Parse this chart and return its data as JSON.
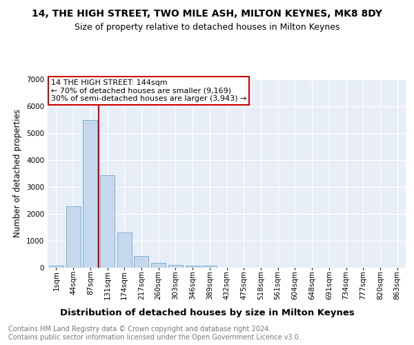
{
  "title1": "14, THE HIGH STREET, TWO MILE ASH, MILTON KEYNES, MK8 8DY",
  "title2": "Size of property relative to detached houses in Milton Keynes",
  "xlabel": "Distribution of detached houses by size in Milton Keynes",
  "ylabel": "Number of detached properties",
  "footer": "Contains HM Land Registry data © Crown copyright and database right 2024.\nContains public sector information licensed under the Open Government Licence v3.0.",
  "bar_labels": [
    "1sqm",
    "44sqm",
    "87sqm",
    "131sqm",
    "174sqm",
    "217sqm",
    "260sqm",
    "303sqm",
    "346sqm",
    "389sqm",
    "432sqm",
    "475sqm",
    "518sqm",
    "561sqm",
    "604sqm",
    "648sqm",
    "691sqm",
    "734sqm",
    "777sqm",
    "820sqm",
    "863sqm"
  ],
  "bar_values": [
    75,
    2280,
    5480,
    3430,
    1310,
    430,
    170,
    85,
    65,
    55,
    0,
    0,
    0,
    0,
    0,
    0,
    0,
    0,
    0,
    0,
    0
  ],
  "bar_color": "#c5d8ee",
  "bar_edge_color": "#7aadd4",
  "vline_color": "#cc0000",
  "annotation_title": "14 THE HIGH STREET: 144sqm",
  "annotation_line1": "← 70% of detached houses are smaller (9,169)",
  "annotation_line2": "30% of semi-detached houses are larger (3,943) →",
  "annotation_box_color": "#cc0000",
  "ylim": [
    0,
    7000
  ],
  "yticks": [
    0,
    1000,
    2000,
    3000,
    4000,
    5000,
    6000,
    7000
  ],
  "bg_color": "#e8eef8",
  "grid_color": "#ffffff",
  "title1_fontsize": 10,
  "title2_fontsize": 9,
  "xlabel_fontsize": 9.5,
  "ylabel_fontsize": 8.5,
  "tick_fontsize": 7.5,
  "footer_fontsize": 7,
  "annotation_fontsize": 8
}
